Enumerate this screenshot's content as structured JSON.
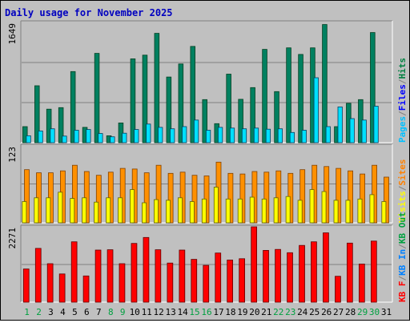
{
  "chart_data": [
    {
      "type": "bar",
      "title": "Daily usage for November 2025",
      "ylabel_max": "1649",
      "categories": [
        "1",
        "2",
        "3",
        "4",
        "5",
        "6",
        "7",
        "8",
        "9",
        "10",
        "11",
        "12",
        "13",
        "14",
        "15",
        "16",
        "17",
        "18",
        "19",
        "20",
        "21",
        "22",
        "23",
        "24",
        "25",
        "26",
        "27",
        "28",
        "29",
        "30",
        "31"
      ],
      "weekend_days": [
        "1",
        "2",
        "8",
        "9",
        "15",
        "16",
        "22",
        "23",
        "29",
        "30"
      ],
      "ylim": [
        0,
        1649
      ],
      "legend": [
        {
          "label": "Pages",
          "color": "#00c0ff"
        },
        {
          "label": "Files",
          "color": "#0000ff"
        },
        {
          "label": "Hits",
          "color": "#008040"
        }
      ],
      "series": [
        {
          "name": "Hits",
          "color": "#008060",
          "values": [
            220,
            780,
            460,
            480,
            975,
            210,
            1225,
            95,
            270,
            1150,
            1200,
            1500,
            900,
            1080,
            1320,
            590,
            260,
            940,
            595,
            755,
            1280,
            700,
            1300,
            1210,
            1300,
            1620,
            220,
            540,
            590,
            1510,
            null
          ]
        },
        {
          "name": "Pages",
          "color": "#00e0ff",
          "values": [
            95,
            160,
            190,
            90,
            170,
            180,
            125,
            80,
            130,
            180,
            255,
            210,
            190,
            220,
            310,
            170,
            210,
            200,
            190,
            200,
            185,
            190,
            140,
            170,
            890,
            220,
            490,
            330,
            310,
            500,
            null
          ]
        }
      ]
    },
    {
      "type": "bar",
      "ylabel_max": "123",
      "ylim": [
        0,
        123
      ],
      "legend": [
        {
          "label": "Visits",
          "color": "#ffff00"
        },
        {
          "label": "Sites",
          "color": "#ff8000"
        }
      ],
      "series": [
        {
          "name": "Sites",
          "color": "#ff9000",
          "values": [
            85,
            80,
            80,
            83,
            92,
            82,
            76,
            81,
            87,
            86,
            80,
            92,
            79,
            81,
            76,
            75,
            97,
            79,
            78,
            82,
            81,
            83,
            79,
            85,
            92,
            90,
            87,
            83,
            78,
            92,
            73
          ]
        },
        {
          "name": "Visits",
          "color": "#ffff00",
          "values": [
            34,
            40,
            40,
            49,
            39,
            40,
            33,
            40,
            40,
            53,
            32,
            37,
            36,
            40,
            34,
            38,
            57,
            38,
            38,
            41,
            38,
            40,
            42,
            36,
            53,
            50,
            36,
            36,
            38,
            45,
            34
          ]
        }
      ]
    },
    {
      "type": "bar",
      "ylabel_max": "2271",
      "ylim": [
        0,
        2271
      ],
      "legend": [
        {
          "label": "KB F",
          "color": "#ff0000"
        },
        {
          "label": "KB In",
          "color": "#0080ff"
        },
        {
          "label": "KB Out",
          "color": "#00a040"
        }
      ],
      "series": [
        {
          "name": "KB F",
          "color": "#ff0000",
          "values": [
            1000,
            1620,
            1160,
            850,
            1820,
            790,
            1570,
            1580,
            1160,
            1770,
            1950,
            1580,
            1180,
            1570,
            1290,
            1110,
            1480,
            1270,
            1310,
            2270,
            1560,
            1590,
            1490,
            1710,
            1820,
            2090,
            780,
            1780,
            1150,
            1840,
            null
          ]
        }
      ]
    }
  ]
}
